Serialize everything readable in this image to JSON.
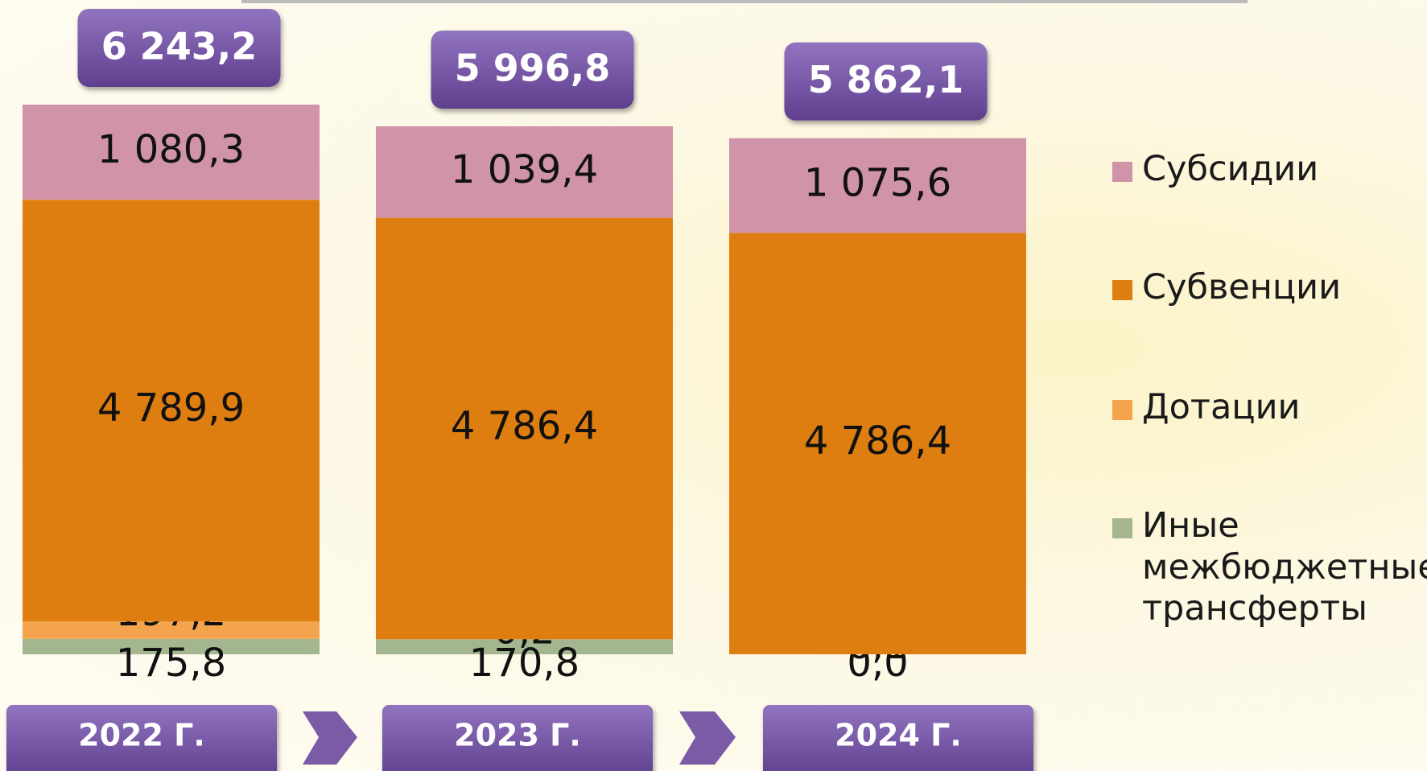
{
  "chart_data": {
    "type": "stacked-bar",
    "categories": [
      "2022 Г.",
      "2023 Г.",
      "2024 Г."
    ],
    "series": [
      {
        "name": "Иные межбюджетные трансферты",
        "color": "#a3b68f",
        "values": [
          175.8,
          170.8,
          0.0
        ],
        "value_labels": [
          "175,8",
          "170,8",
          "0,0"
        ]
      },
      {
        "name": "Дотации",
        "color": "#f4a44c",
        "values": [
          197.2,
          0.2,
          0.1
        ],
        "value_labels": [
          "197,2",
          "0,2",
          "0,1"
        ]
      },
      {
        "name": "Субвенции",
        "color": "#df7e10",
        "values": [
          4789.9,
          4786.4,
          4786.4
        ],
        "value_labels": [
          "4 789,9",
          "4 786,4",
          "4 786,4"
        ]
      },
      {
        "name": "Субсидии",
        "color": "#d093a8",
        "values": [
          1080.3,
          1039.4,
          1075.6
        ],
        "value_labels": [
          "1 080,3",
          "1 039,4",
          "1 075,6"
        ]
      }
    ],
    "totals": {
      "values": [
        6243.2,
        5996.8,
        5862.1
      ],
      "value_labels": [
        "6 243,2",
        "5 996,8",
        "5 862,1"
      ]
    }
  }
}
